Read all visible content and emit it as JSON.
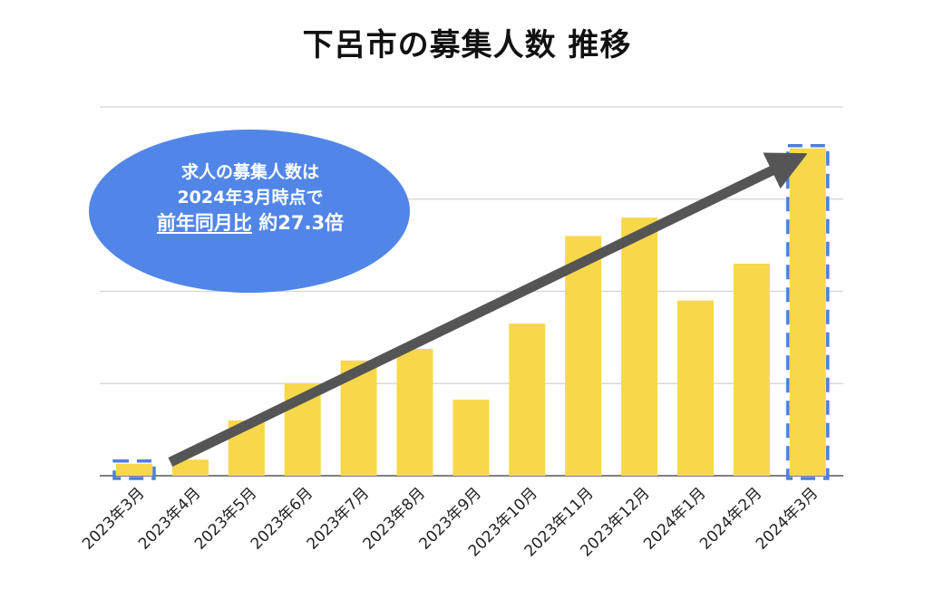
{
  "chart_data": {
    "type": "bar",
    "title": "下呂市の募集人数 推移",
    "categories": [
      "2023年3月",
      "2023年4月",
      "2023年5月",
      "2023年6月",
      "2023年7月",
      "2023年8月",
      "2023年9月",
      "2023年10月",
      "2023年11月",
      "2023年12月",
      "2024年1月",
      "2024年2月",
      "2024年3月"
    ],
    "values": [
      2.6,
      3.5,
      12,
      20,
      25,
      27.5,
      16.5,
      33,
      52,
      56,
      38,
      46,
      71
    ],
    "ylim": [
      0,
      80
    ],
    "gridlines": [
      0,
      20,
      40,
      60,
      80
    ],
    "ytick_labels_visible": false,
    "bar_color": "#F7D84B",
    "highlight_color": "#4C7FDF",
    "highlighted_categories": [
      "2023年3月",
      "2024年3月"
    ],
    "trend_arrow": {
      "from_category": "2023年4月",
      "to_category": "2024年3月",
      "color": "#555555"
    },
    "annotation": {
      "line1": "求人の募集人数は",
      "line2": "2024年3月時点で",
      "line3_underlined": "前年同月比",
      "line3_rest": " 約27.3倍",
      "bg_color": "#5186E8"
    }
  }
}
